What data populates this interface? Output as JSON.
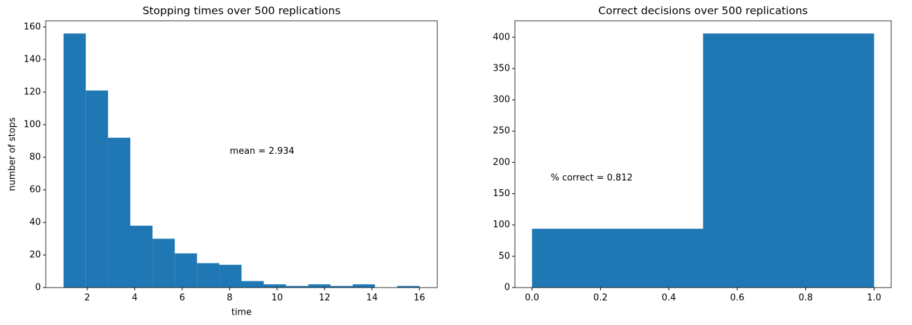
{
  "chart_data": [
    {
      "type": "histogram",
      "title": "Stopping times over 500 replications",
      "xlabel": "time",
      "ylabel": "number of stops",
      "bins": [
        1,
        1.9375,
        2.875,
        3.8125,
        4.75,
        5.6875,
        6.625,
        7.5625,
        8.5,
        9.4375,
        10.375,
        11.3125,
        12.25,
        13.1875,
        14.125,
        15.0625,
        16
      ],
      "values": [
        156,
        121,
        92,
        38,
        30,
        21,
        15,
        14,
        4,
        2,
        1,
        2,
        1,
        2,
        0,
        1
      ],
      "color": "#1f77b4",
      "annotation": "mean = 2.934",
      "xlim": [
        0.25,
        16.75
      ],
      "ylim": [
        0,
        163.8
      ],
      "xticks": [
        2,
        4,
        6,
        8,
        10,
        12,
        14,
        16
      ],
      "yticks": [
        0,
        20,
        40,
        60,
        80,
        100,
        120,
        140,
        160
      ]
    },
    {
      "type": "histogram",
      "title": "Correct decisions over 500 replications",
      "bins": [
        0,
        0.5,
        1
      ],
      "values": [
        94,
        406
      ],
      "color": "#1f77b4",
      "annotation": "% correct = 0.812",
      "xlim": [
        -0.05,
        1.05
      ],
      "ylim": [
        0,
        426.3
      ],
      "xticks": [
        {
          "value": 0,
          "label": "0.0"
        },
        0.2,
        0.4,
        0.6,
        0.8,
        {
          "value": 1,
          "label": "1.0"
        }
      ],
      "yticks": [
        0,
        50,
        100,
        150,
        200,
        250,
        300,
        350,
        400
      ]
    }
  ]
}
